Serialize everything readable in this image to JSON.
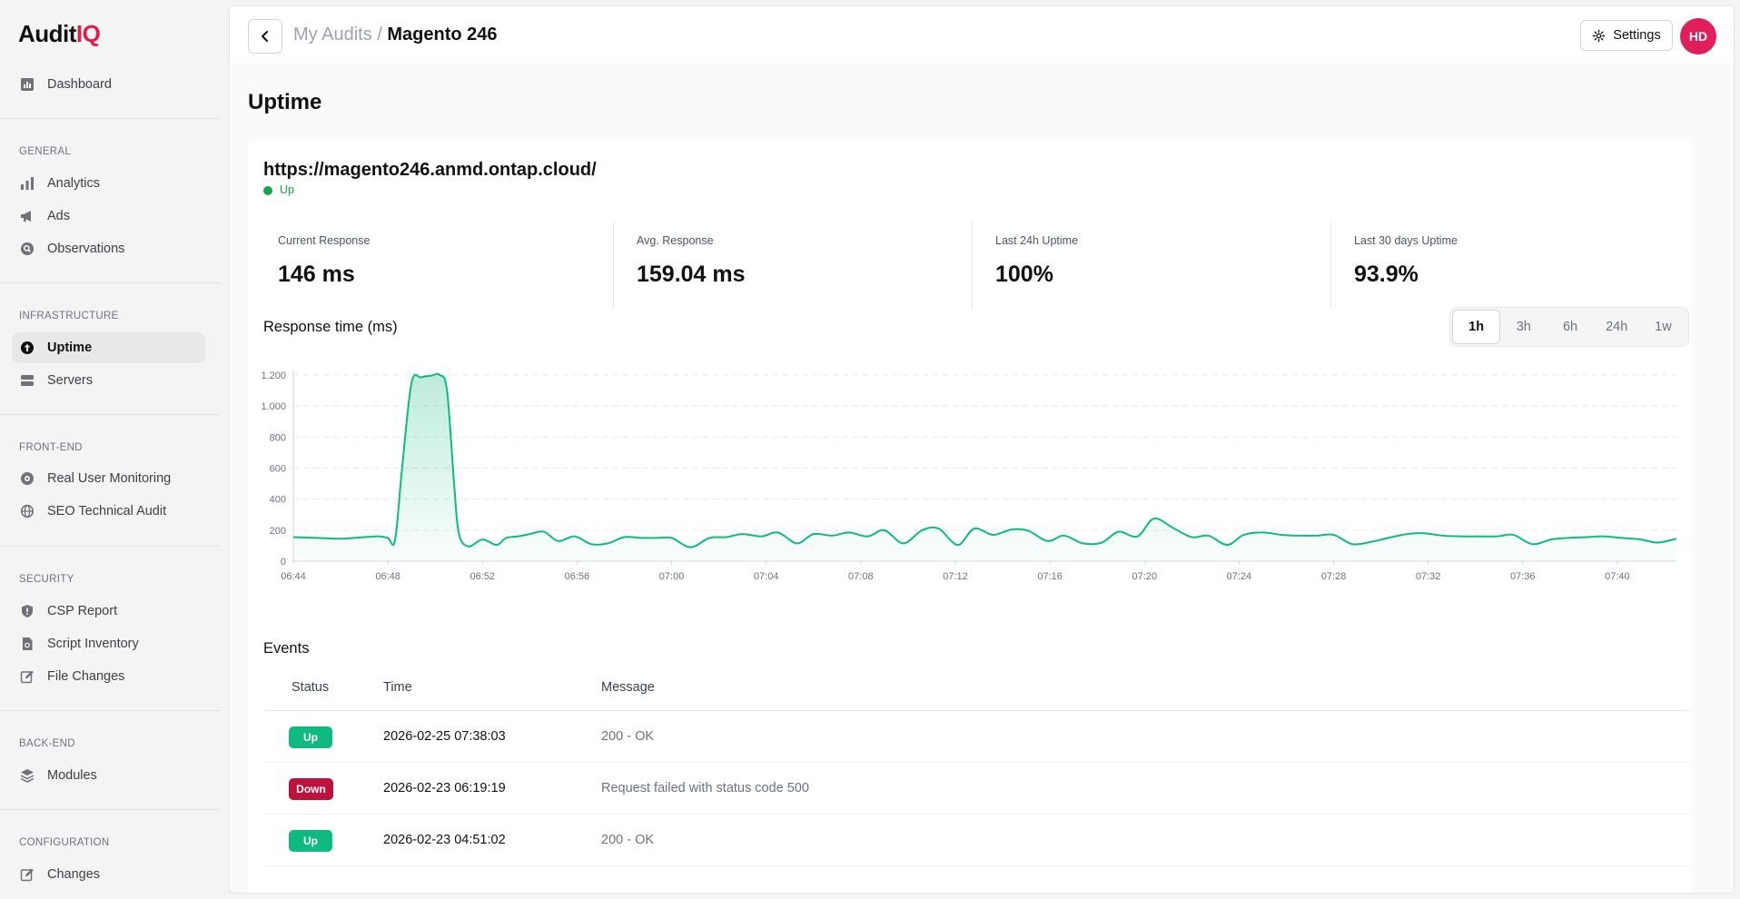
{
  "app": {
    "logo_main": "Audit",
    "logo_accent": "IQ"
  },
  "sidebar": {
    "dashboard": "Dashboard",
    "sections": [
      {
        "title": "GENERAL",
        "items": [
          "Analytics",
          "Ads",
          "Observations"
        ]
      },
      {
        "title": "INFRASTRUCTURE",
        "items": [
          "Uptime",
          "Servers"
        ]
      },
      {
        "title": "FRONT-END",
        "items": [
          "Real User Monitoring",
          "SEO Technical Audit"
        ]
      },
      {
        "title": "SECURITY",
        "items": [
          "CSP Report",
          "Script Inventory",
          "File Changes"
        ]
      },
      {
        "title": "BACK-END",
        "items": [
          "Modules"
        ]
      },
      {
        "title": "CONFIGURATION",
        "items": [
          "Changes"
        ]
      }
    ],
    "active": "Uptime"
  },
  "header": {
    "breadcrumb_parent": "My Audits /",
    "breadcrumb_current": "Magento 246",
    "settings_label": "Settings",
    "avatar_initials": "HD"
  },
  "page": {
    "title": "Uptime"
  },
  "monitor": {
    "url": "https://magento246.anmd.ontap.cloud/",
    "status": "Up",
    "status_color": "#16a34a"
  },
  "stats": [
    {
      "label": "Current Response",
      "value": "146 ms"
    },
    {
      "label": "Avg. Response",
      "value": "159.04 ms"
    },
    {
      "label": "Last 24h Uptime",
      "value": "100%"
    },
    {
      "label": "Last 30 days Uptime",
      "value": "93.9%"
    }
  ],
  "chart_section": {
    "title": "Response time (ms)",
    "ranges": [
      "1h",
      "3h",
      "6h",
      "24h",
      "1w"
    ],
    "selected_range": "1h"
  },
  "chart_data": {
    "type": "area",
    "title": "Response time (ms)",
    "xlabel": "",
    "ylabel": "",
    "ylim": [
      0,
      1200
    ],
    "yticks": [
      0,
      200,
      400,
      600,
      800,
      1000,
      1200
    ],
    "xticks": [
      "06:44",
      "06:48",
      "06:52",
      "06:56",
      "07:00",
      "07:04",
      "07:08",
      "07:12",
      "07:16",
      "07:20",
      "07:24",
      "07:28",
      "07:32",
      "07:36",
      "07:40"
    ],
    "x_start_minute": 404,
    "x_end_minute": 462.5,
    "grid": "horizontal-dashed",
    "color": "#10b981",
    "series": [
      {
        "x": [
          404,
          405,
          406,
          407,
          407.6,
          408,
          408.3,
          408.6,
          409,
          409.4,
          409.8,
          410.2,
          410.5,
          410.8,
          411,
          411.4,
          412,
          412.6,
          413,
          413.5,
          414,
          414.6,
          415.2,
          415.9,
          416.6,
          417.3,
          418,
          418.7,
          419.4,
          420,
          420.8,
          421.6,
          422.3,
          423,
          423.8,
          424.5,
          425.3,
          426,
          426.8,
          427.5,
          428.3,
          429,
          429.8,
          430.6,
          431.3,
          432.1,
          432.8,
          433.6,
          434.4,
          435.1,
          435.9,
          436.6,
          437.4,
          438.2,
          438.9,
          439.7,
          440.4,
          441.2,
          442,
          442.7,
          443.5,
          444.2,
          445,
          445.8,
          446.5,
          447.3,
          448,
          448.8,
          449.6,
          450.3,
          451.1,
          451.8,
          452.6,
          453.4,
          454.1,
          454.9,
          455.6,
          456.4,
          457.2,
          457.9,
          458.7,
          459.4,
          460.2,
          461,
          461.7,
          462.5
        ],
        "y": [
          155,
          150,
          145,
          155,
          160,
          150,
          135,
          600,
          1150,
          1185,
          1195,
          1200,
          1100,
          500,
          180,
          95,
          140,
          105,
          150,
          160,
          175,
          190,
          130,
          160,
          110,
          115,
          155,
          150,
          150,
          150,
          90,
          150,
          155,
          175,
          160,
          185,
          115,
          175,
          165,
          185,
          160,
          200,
          115,
          200,
          210,
          105,
          210,
          170,
          205,
          195,
          130,
          165,
          115,
          120,
          190,
          160,
          275,
          215,
          155,
          165,
          105,
          170,
          185,
          170,
          165,
          165,
          170,
          110,
          125,
          150,
          175,
          180,
          165,
          160,
          160,
          160,
          170,
          110,
          140,
          150,
          155,
          160,
          150,
          140,
          120,
          145
        ]
      }
    ]
  },
  "events": {
    "title": "Events",
    "columns": [
      "Status",
      "Time",
      "Message"
    ],
    "rows": [
      {
        "status": "Up",
        "time": "2026-02-25 07:38:03",
        "message": "200 - OK"
      },
      {
        "status": "Down",
        "time": "2026-02-23 06:19:19",
        "message": "Request failed with status code 500"
      },
      {
        "status": "Up",
        "time": "2026-02-23 04:51:02",
        "message": "200 - OK"
      }
    ]
  }
}
